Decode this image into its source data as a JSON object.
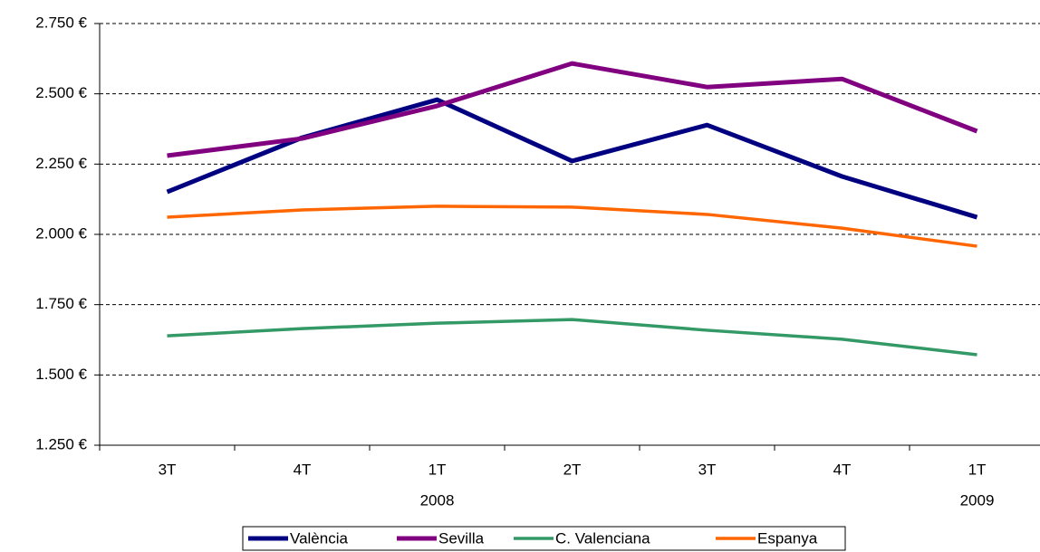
{
  "chart_data": {
    "type": "line",
    "categories": [
      "3T",
      "4T",
      "1T",
      "2T",
      "3T",
      "4T",
      "1T"
    ],
    "category_groups": [
      null,
      null,
      "2008",
      null,
      null,
      null,
      "2009"
    ],
    "series": [
      {
        "name": "València",
        "color": "#000080",
        "values": [
          2151,
          2344,
          2479,
          2261,
          2389,
          2206,
          2061
        ]
      },
      {
        "name": "Sevilla",
        "color": "#800080",
        "values": [
          2280,
          2341,
          2457,
          2608,
          2524,
          2553,
          2367
        ]
      },
      {
        "name": "C. Valenciana",
        "color": "#339966",
        "values": [
          1639,
          1665,
          1684,
          1697,
          1659,
          1627,
          1572
        ]
      },
      {
        "name": "Espanya",
        "color": "#ff6600",
        "values": [
          2061,
          2087,
          2100,
          2097,
          2071,
          2022,
          1958
        ]
      }
    ],
    "ylim": [
      1250,
      2750
    ],
    "yticks": [
      {
        "value": 1250,
        "label": "1.250 €"
      },
      {
        "value": 1500,
        "label": "1.500 €"
      },
      {
        "value": 1750,
        "label": "1.750 €"
      },
      {
        "value": 2000,
        "label": "2.000 €"
      },
      {
        "value": 2250,
        "label": "2.250 €"
      },
      {
        "value": 2500,
        "label": "2.500 €"
      },
      {
        "value": 2750,
        "label": "2.750 €"
      }
    ],
    "grid": true,
    "legend": "bottom"
  }
}
